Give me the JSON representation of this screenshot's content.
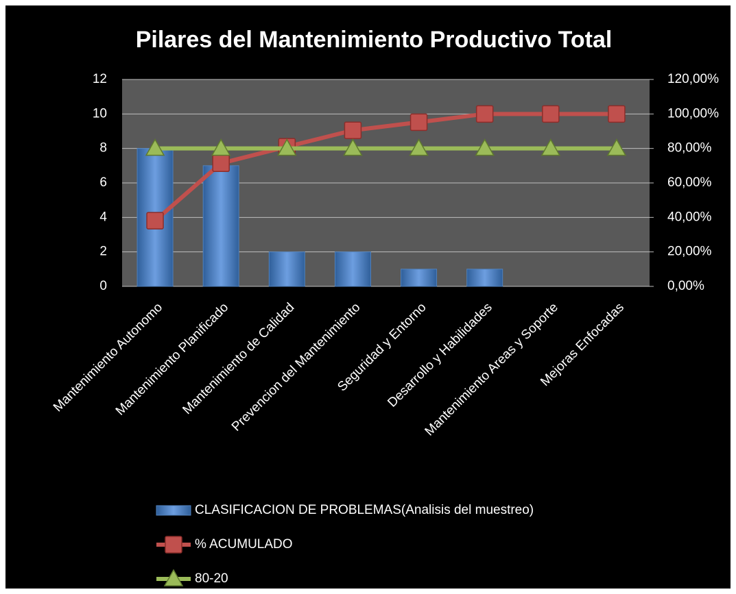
{
  "chart_data": {
    "type": "bar",
    "title": "Pilares del Mantenimiento Productivo Total",
    "categories": [
      "Mantenimiento Autonomo",
      "Mantenimiento Planificado",
      "Mantenimiento de Calidad",
      "Prevencion del Mantenimiento",
      "Seguridad y Entorno",
      "Desarrollo y Habilidades",
      "Mantenimiento Areas y Soporte",
      "Mejoras Enfocadas"
    ],
    "series": [
      {
        "name": "CLASIFICACION DE PROBLEMAS(Analisis del muestreo)",
        "type": "bar",
        "color": "#4f81bd",
        "values": [
          8,
          7,
          2,
          2,
          1,
          1,
          0,
          0
        ]
      },
      {
        "name": "% ACUMULADO",
        "type": "line",
        "marker": "square",
        "axis": "y2",
        "color": "#c0504d",
        "values": [
          38.1,
          71.4,
          81,
          90.5,
          95.2,
          100,
          100,
          100
        ]
      },
      {
        "name": "80-20",
        "type": "line",
        "marker": "triangle",
        "axis": "y2",
        "color": "#9bbb59",
        "values": [
          80,
          80,
          80,
          80,
          80,
          80,
          80,
          80
        ]
      }
    ],
    "ylim": [
      0,
      12
    ],
    "yticks": [
      0,
      2,
      4,
      6,
      8,
      10,
      12
    ],
    "y2lim": [
      0,
      120
    ],
    "y2ticks": [
      {
        "value": 0,
        "label": "0,00%"
      },
      {
        "value": 20,
        "label": "20,00%"
      },
      {
        "value": 40,
        "label": "40,00%"
      },
      {
        "value": 60,
        "label": "60,00%"
      },
      {
        "value": 80,
        "label": "80,00%"
      },
      {
        "value": 100,
        "label": "100,00%"
      },
      {
        "value": 120,
        "label": "120,00%"
      }
    ],
    "grid": true,
    "legend": "bottom"
  }
}
